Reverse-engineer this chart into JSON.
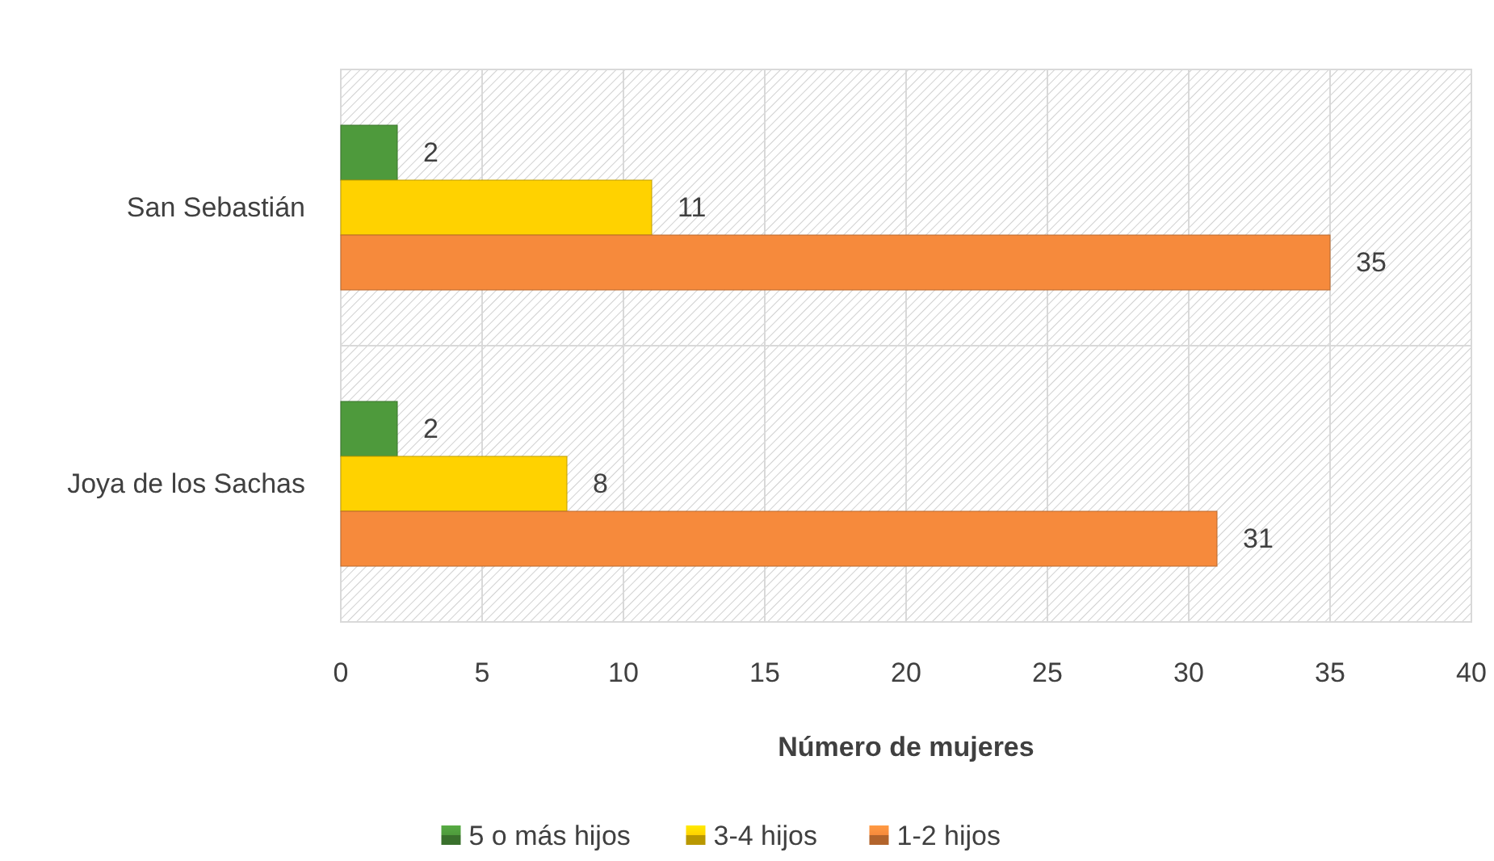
{
  "chart_data": {
    "type": "bar",
    "orientation": "horizontal",
    "xlabel": "Número de mujeres",
    "categories": [
      "San Sebastián",
      "Joya de los Sachas"
    ],
    "series": [
      {
        "name": "5 o más hijos",
        "color": "#4e9a3c",
        "values": [
          2,
          2
        ]
      },
      {
        "name": "3-4 hijos",
        "color": "#ffd200",
        "values": [
          11,
          8
        ]
      },
      {
        "name": "1-2 hijos",
        "color": "#f68a3c",
        "values": [
          35,
          31
        ]
      }
    ],
    "xlim": [
      0,
      40
    ],
    "xticks": [
      0,
      5,
      10,
      15,
      20,
      25,
      30,
      35,
      40
    ],
    "grid": true,
    "legend": "bottom",
    "data_labels": true
  }
}
